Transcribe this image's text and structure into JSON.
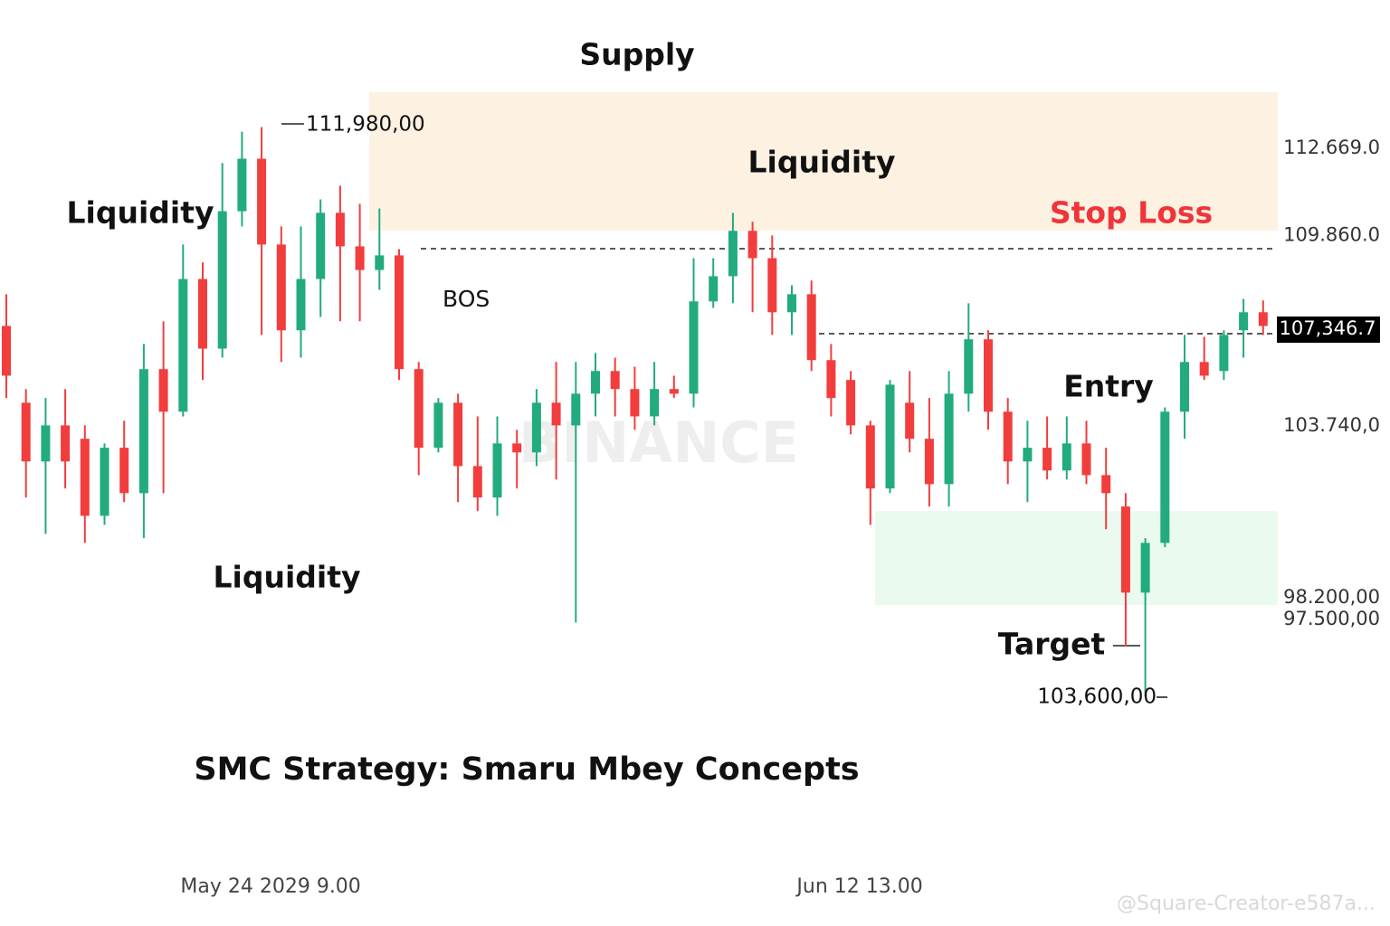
{
  "chart_data": {
    "type": "candlestick",
    "title": "SMC Strategy: Smaru Mbey Concepts",
    "watermark": "BINANCE",
    "credit": "@Square-Creator-e587a...",
    "up_color": "#22ab7f",
    "down_color": "#f23d3d",
    "ylim": [
      90000,
      117000
    ],
    "yticks": [
      {
        "value": 112669,
        "label": "112.669.0"
      },
      {
        "value": 109860,
        "label": "109.860.0"
      },
      {
        "value": 103740,
        "label": "103.740,0"
      },
      {
        "value": 98200,
        "label": "98.200,00"
      },
      {
        "value": 97500,
        "label": "97.500,00"
      }
    ],
    "annotations": [
      "Supply",
      "Liquidity",
      "Liquidity",
      "Liquidity",
      "Stop Loss",
      "BOS",
      "Entry",
      "Target",
      "111,980,00",
      "103,600,00",
      "107,346.7"
    ],
    "categories": [
      null,
      null,
      null,
      null,
      null,
      null,
      null,
      null,
      null,
      null,
      null,
      null,
      null,
      "May 24 2029 9.00",
      null,
      null,
      null,
      null,
      null,
      null,
      null,
      null,
      null,
      null,
      null,
      null,
      null,
      null,
      null,
      null,
      null,
      null,
      null,
      null,
      null,
      null,
      null,
      null,
      null,
      null,
      null,
      null,
      null,
      "Jun 12 13.00",
      null,
      null,
      null,
      null,
      null,
      null,
      null,
      null,
      null,
      null,
      null,
      null,
      null,
      null,
      null,
      null,
      null,
      null,
      null,
      null,
      null
    ],
    "open": [
      106950,
      104480,
      102590,
      103750,
      103320,
      100840,
      103030,
      101570,
      105560,
      104190,
      108460,
      106220,
      110640,
      112330,
      109570,
      106810,
      108460,
      110590,
      109510,
      108750,
      109220,
      105560,
      103030,
      104480,
      102440,
      101430,
      103170,
      102880,
      104480,
      103750,
      104770,
      105500,
      104920,
      104040,
      104920,
      104770,
      107740,
      108550,
      110010,
      109130,
      107390,
      107970,
      105850,
      105210,
      103750,
      101720,
      104480,
      103320,
      101860,
      104770,
      106520,
      104190,
      102590,
      103030,
      102300,
      103170,
      102150,
      101140,
      98370,
      99970,
      104190,
      105790,
      105500,
      106810,
      107390
    ],
    "high": [
      107970,
      104920,
      104630,
      104920,
      103750,
      103170,
      103900,
      106370,
      107100,
      109570,
      108990,
      112190,
      113200,
      113350,
      110150,
      110150,
      111020,
      111460,
      110880,
      110730,
      109420,
      105790,
      104630,
      104770,
      104040,
      104040,
      103610,
      104920,
      105790,
      105790,
      106080,
      105930,
      105640,
      105790,
      105350,
      109130,
      109130,
      110590,
      110300,
      109860,
      108260,
      108410,
      106370,
      105500,
      103900,
      105210,
      105500,
      104630,
      105500,
      107680,
      106810,
      104630,
      103900,
      104040,
      104040,
      103900,
      103030,
      101570,
      100120,
      104330,
      106660,
      106600,
      106810,
      107820,
      107770
    ],
    "low": [
      104630,
      101430,
      100260,
      101720,
      99970,
      100550,
      101280,
      100120,
      101570,
      104040,
      105210,
      105930,
      110150,
      106660,
      105790,
      105930,
      107240,
      107100,
      107100,
      108110,
      105210,
      102150,
      102880,
      101280,
      100990,
      100840,
      101720,
      102440,
      102010,
      97410,
      104040,
      104040,
      103610,
      103750,
      104630,
      104330,
      107530,
      107680,
      107390,
      106660,
      106660,
      105500,
      104040,
      103460,
      100550,
      101570,
      102880,
      101140,
      101140,
      104190,
      103610,
      101860,
      101280,
      102010,
      102010,
      101860,
      100410,
      96630,
      95030,
      99830,
      103320,
      105210,
      105210,
      105930,
      106660
    ],
    "close": [
      105350,
      102590,
      103750,
      102590,
      100840,
      103030,
      101570,
      105560,
      104190,
      108460,
      106220,
      110640,
      112330,
      109570,
      106810,
      108460,
      110590,
      109510,
      108750,
      109220,
      105560,
      103030,
      104480,
      102440,
      101430,
      103170,
      102880,
      104480,
      103750,
      104770,
      105500,
      104920,
      104040,
      104920,
      104770,
      107740,
      108550,
      110010,
      109130,
      107390,
      107970,
      105850,
      104630,
      103750,
      101720,
      105060,
      103320,
      101860,
      104770,
      106520,
      104190,
      102590,
      103030,
      102300,
      103170,
      102150,
      101570,
      98370,
      99970,
      104190,
      105790,
      105350,
      106660,
      107390,
      106950
    ]
  }
}
